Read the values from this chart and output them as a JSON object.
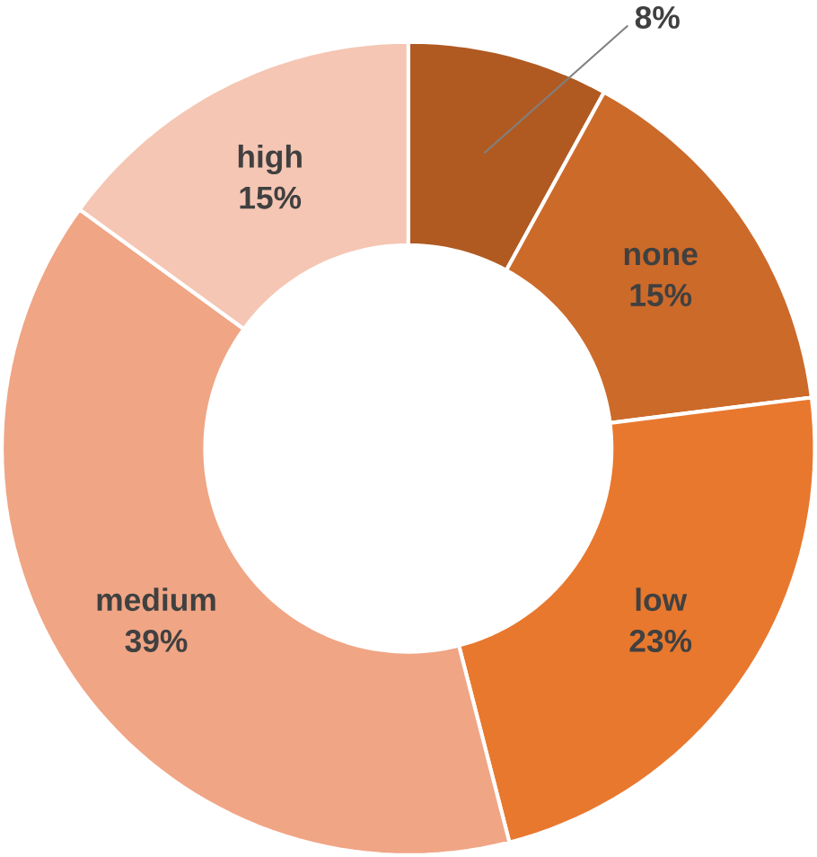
{
  "chart_data": {
    "type": "donut",
    "categories": [
      null,
      "none",
      "low",
      "medium",
      "high"
    ],
    "values": [
      8,
      15,
      23,
      39,
      15
    ],
    "value_labels": [
      "8%",
      "15%",
      "23%",
      "39%",
      "15%"
    ],
    "colors": [
      "#b05a22",
      "#cc6a2a",
      "#e8782e",
      "#f0a585",
      "#f5c6b3"
    ]
  }
}
